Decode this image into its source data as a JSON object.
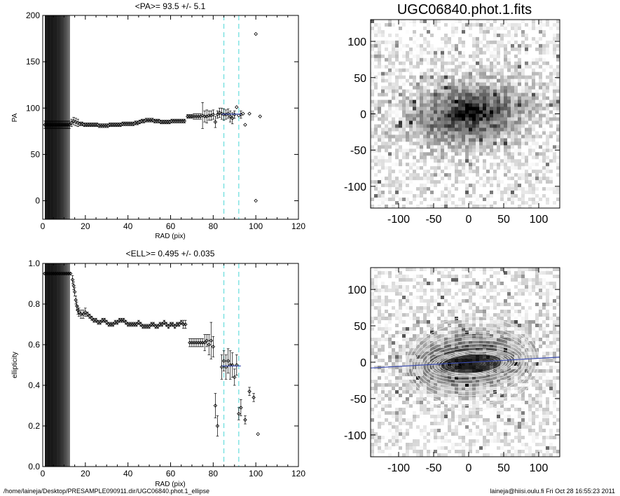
{
  "chart_data": [
    {
      "type": "scatter",
      "title": "<PA>=  93.5 +/-   5.1",
      "xlabel": "RAD (pix)",
      "ylabel": "PA",
      "xlim": [
        0,
        120
      ],
      "ylim": [
        -20,
        200
      ],
      "xticks": [
        "0",
        "20",
        "40",
        "60",
        "80",
        "100",
        "120"
      ],
      "yticks": [
        "0",
        "50",
        "100",
        "150",
        "200"
      ],
      "vlines": [
        85,
        92
      ],
      "series": [
        {
          "points": [
            [
              1,
              82
            ],
            [
              1.6,
              82
            ],
            [
              2.2,
              82
            ],
            [
              2.8,
              82
            ],
            [
              3.4,
              82
            ],
            [
              4,
              82
            ],
            [
              4.6,
              82
            ],
            [
              5.2,
              82
            ],
            [
              5.8,
              82
            ],
            [
              6.4,
              82
            ],
            [
              7,
              82
            ],
            [
              7.6,
              82
            ],
            [
              8.2,
              82
            ],
            [
              8.8,
              82
            ],
            [
              9.4,
              82
            ],
            [
              10,
              82
            ],
            [
              10.6,
              82
            ],
            [
              11.2,
              82
            ],
            [
              11.8,
              82
            ],
            [
              12.5,
              82
            ],
            [
              13.5,
              84
            ],
            [
              14.5,
              86
            ],
            [
              15.5,
              85
            ],
            [
              16.5,
              84
            ],
            [
              17.5,
              83
            ],
            [
              18.5,
              83
            ],
            [
              19.5,
              82
            ],
            [
              20.5,
              82
            ],
            [
              21.5,
              82
            ],
            [
              22.5,
              82
            ],
            [
              23.5,
              82
            ],
            [
              24.5,
              82
            ],
            [
              25.5,
              82
            ],
            [
              26.5,
              81
            ],
            [
              27.5,
              81
            ],
            [
              28.5,
              81
            ],
            [
              29.5,
              81
            ],
            [
              30.5,
              81
            ],
            [
              31.5,
              82
            ],
            [
              32.5,
              82
            ],
            [
              33.5,
              82
            ],
            [
              34.5,
              82
            ],
            [
              35.5,
              82
            ],
            [
              36.5,
              82
            ],
            [
              37.5,
              83
            ],
            [
              38.5,
              83
            ],
            [
              39.5,
              83
            ],
            [
              40.5,
              83
            ],
            [
              41.5,
              83
            ],
            [
              42.5,
              83
            ],
            [
              43.5,
              84
            ],
            [
              44.5,
              84
            ],
            [
              45.5,
              85
            ],
            [
              46.5,
              86
            ],
            [
              47.5,
              86
            ],
            [
              48.5,
              87
            ],
            [
              49.5,
              87
            ],
            [
              50.5,
              87
            ],
            [
              51.5,
              87
            ],
            [
              52.5,
              86
            ],
            [
              53.5,
              86
            ],
            [
              54.5,
              86
            ],
            [
              55.5,
              85
            ],
            [
              56.5,
              85
            ],
            [
              57.5,
              85
            ],
            [
              58.5,
              85
            ],
            [
              59.5,
              85
            ],
            [
              60.5,
              86
            ],
            [
              61.5,
              86
            ],
            [
              62.5,
              86
            ],
            [
              63.5,
              86
            ],
            [
              64.5,
              86
            ],
            [
              65.5,
              86
            ],
            [
              66.5,
              86
            ],
            [
              68,
              91
            ],
            [
              69,
              91
            ],
            [
              70,
              91
            ],
            [
              71,
              91
            ],
            [
              72,
              91
            ],
            [
              73,
              91
            ],
            [
              74,
              91
            ],
            [
              75,
              92
            ],
            [
              76,
              91
            ],
            [
              77,
              91
            ],
            [
              78,
              92
            ],
            [
              79,
              92
            ],
            [
              80,
              93
            ],
            [
              81,
              85
            ],
            [
              82,
              93
            ],
            [
              83,
              95
            ],
            [
              84,
              94
            ],
            [
              85,
              93
            ],
            [
              86,
              93
            ],
            [
              87,
              94
            ],
            [
              88,
              91
            ],
            [
              89,
              89
            ],
            [
              90,
              93
            ],
            [
              91,
              101
            ],
            [
              92,
              92
            ],
            [
              93,
              93
            ],
            [
              94,
              94
            ],
            [
              95,
              82
            ],
            [
              97,
              94
            ],
            [
              100,
              180
            ],
            [
              100,
              0
            ],
            [
              102,
              91
            ]
          ],
          "errors": [
            4,
            4,
            4,
            4,
            4,
            4,
            4,
            4,
            4,
            4,
            4,
            4,
            4,
            4,
            4,
            4,
            4,
            4,
            4,
            4,
            4,
            4,
            4,
            4,
            2,
            2,
            2,
            2,
            2,
            2,
            2,
            2,
            2,
            2,
            2,
            2,
            2,
            2,
            2,
            2,
            2,
            2,
            2,
            2,
            2,
            2,
            2,
            2,
            2,
            2,
            2,
            2,
            2,
            2,
            2,
            2,
            2,
            2,
            2,
            2,
            2,
            2,
            2,
            2,
            2,
            2,
            2,
            2,
            2,
            2,
            2,
            2,
            2,
            2,
            2,
            2,
            2,
            3,
            3,
            3,
            3,
            14,
            6,
            7,
            5,
            5,
            5,
            6,
            4,
            5,
            6,
            6,
            5,
            5,
            6,
            6,
            4,
            0,
            0,
            4
          ]
        }
      ],
      "mean_marker": {
        "x": [
          84,
          93
        ],
        "y": 93.5
      }
    },
    {
      "type": "scatter",
      "title": "<ELL>= 0.495 +/-  0.035",
      "xlabel": "RAD (pix)",
      "ylabel": "ellipticity",
      "xlim": [
        0,
        120
      ],
      "ylim": [
        0.0,
        1.0
      ],
      "xticks": [
        "0",
        "20",
        "40",
        "60",
        "80",
        "100",
        "120"
      ],
      "yticks": [
        "0.0",
        "0.2",
        "0.4",
        "0.6",
        "0.8",
        "1.0"
      ],
      "vlines": [
        85,
        92
      ],
      "series": [
        {
          "points": [
            [
              1,
              0.95
            ],
            [
              2,
              0.95
            ],
            [
              3,
              0.95
            ],
            [
              4,
              0.95
            ],
            [
              5,
              0.95
            ],
            [
              6,
              0.95
            ],
            [
              7,
              0.95
            ],
            [
              8,
              0.95
            ],
            [
              9,
              0.95
            ],
            [
              10,
              0.95
            ],
            [
              11,
              0.95
            ],
            [
              12,
              0.95
            ],
            [
              13,
              0.95
            ],
            [
              14,
              0.92
            ],
            [
              14.5,
              0.89
            ],
            [
              15,
              0.86
            ],
            [
              15.5,
              0.82
            ],
            [
              16,
              0.79
            ],
            [
              16.5,
              0.77
            ],
            [
              17,
              0.76
            ],
            [
              18,
              0.75
            ],
            [
              19,
              0.75
            ],
            [
              20,
              0.76
            ],
            [
              21,
              0.75
            ],
            [
              22,
              0.74
            ],
            [
              23,
              0.73
            ],
            [
              24,
              0.72
            ],
            [
              25,
              0.72
            ],
            [
              26,
              0.71
            ],
            [
              27,
              0.71
            ],
            [
              28,
              0.72
            ],
            [
              29,
              0.72
            ],
            [
              30,
              0.71
            ],
            [
              31,
              0.7
            ],
            [
              32,
              0.7
            ],
            [
              33,
              0.7
            ],
            [
              34,
              0.71
            ],
            [
              35,
              0.71
            ],
            [
              36,
              0.72
            ],
            [
              37,
              0.72
            ],
            [
              38,
              0.72
            ],
            [
              39,
              0.71
            ],
            [
              40,
              0.7
            ],
            [
              41,
              0.7
            ],
            [
              42,
              0.7
            ],
            [
              43,
              0.7
            ],
            [
              44,
              0.7
            ],
            [
              45,
              0.71
            ],
            [
              46,
              0.7
            ],
            [
              47,
              0.69
            ],
            [
              48,
              0.69
            ],
            [
              49,
              0.69
            ],
            [
              50,
              0.69
            ],
            [
              51,
              0.7
            ],
            [
              52,
              0.7
            ],
            [
              53,
              0.69
            ],
            [
              54,
              0.69
            ],
            [
              55,
              0.7
            ],
            [
              56,
              0.7
            ],
            [
              57,
              0.71
            ],
            [
              58,
              0.7
            ],
            [
              59,
              0.69
            ],
            [
              60,
              0.7
            ],
            [
              61,
              0.7
            ],
            [
              62,
              0.69
            ],
            [
              63,
              0.7
            ],
            [
              64,
              0.7
            ],
            [
              65,
              0.71
            ],
            [
              66,
              0.7
            ],
            [
              67,
              0.7
            ],
            [
              69,
              0.61
            ],
            [
              70,
              0.61
            ],
            [
              71,
              0.61
            ],
            [
              72,
              0.61
            ],
            [
              73,
              0.61
            ],
            [
              74,
              0.61
            ],
            [
              75,
              0.61
            ],
            [
              76,
              0.61
            ],
            [
              77,
              0.62
            ],
            [
              78,
              0.6
            ],
            [
              79,
              0.62
            ],
            [
              80,
              0.59
            ],
            [
              81,
              0.3
            ],
            [
              82,
              0.2
            ],
            [
              84,
              0.49
            ],
            [
              85,
              0.52
            ],
            [
              86,
              0.49
            ],
            [
              87,
              0.52
            ],
            [
              88,
              0.5
            ],
            [
              89,
              0.5
            ],
            [
              90,
              0.44
            ],
            [
              91,
              0.5
            ],
            [
              92,
              0.26
            ],
            [
              93,
              0.29
            ],
            [
              95,
              0.23
            ],
            [
              97,
              0.37
            ],
            [
              99,
              0.34
            ],
            [
              101,
              0.16
            ]
          ],
          "errors": [
            0.005,
            0.005,
            0.005,
            0.005,
            0.005,
            0.005,
            0.005,
            0.005,
            0.005,
            0.005,
            0.005,
            0.005,
            0.005,
            0.02,
            0.02,
            0.02,
            0.02,
            0.02,
            0.02,
            0.02,
            0.02,
            0.02,
            0.02,
            0.01,
            0.01,
            0.01,
            0.01,
            0.01,
            0.01,
            0.01,
            0.01,
            0.01,
            0.01,
            0.01,
            0.01,
            0.01,
            0.01,
            0.01,
            0.01,
            0.01,
            0.01,
            0.01,
            0.01,
            0.01,
            0.01,
            0.01,
            0.01,
            0.01,
            0.01,
            0.01,
            0.01,
            0.01,
            0.01,
            0.01,
            0.01,
            0.01,
            0.01,
            0.01,
            0.01,
            0.01,
            0.01,
            0.01,
            0.01,
            0.01,
            0.01,
            0.01,
            0.01,
            0.01,
            0.02,
            0.02,
            0.02,
            0.02,
            0.02,
            0.02,
            0.02,
            0.02,
            0.02,
            0.04,
            0.03,
            0.05,
            0.09,
            0.05,
            0.06,
            0.05,
            0.06,
            0.05,
            0.06,
            0.06,
            0.07,
            0.06,
            0.04,
            0.05,
            0.03,
            0.04,
            0.02,
            0.02,
            0.02
          ]
        }
      ],
      "mean_marker": {
        "x": [
          84,
          93
        ],
        "y": 0.495
      }
    },
    {
      "type": "heatmap",
      "title": "UGC06840.phot.1.fits",
      "xlim": [
        -140,
        130
      ],
      "ylim": [
        -130,
        130
      ],
      "xticks": [
        "-100",
        "-50",
        "0",
        "50",
        "100"
      ],
      "yticks": [
        "100",
        "50",
        "0",
        "-50",
        "-100"
      ],
      "colormap": "grayscale"
    },
    {
      "type": "heatmap",
      "title": "",
      "xlim": [
        -140,
        130
      ],
      "ylim": [
        -130,
        130
      ],
      "xticks": [
        "-100",
        "-50",
        "0",
        "50",
        "100"
      ],
      "yticks": [
        "100",
        "50",
        "0",
        "-50",
        "-100"
      ],
      "colormap": "grayscale",
      "overlay": "ellipse-contours",
      "major_axis_line_color": "#3a4bb0"
    }
  ],
  "footer": {
    "left": "/home/laineja/Desktop/PRESAMPLE090911.dir/UGC06840.phot.1_ellipse",
    "right": "laineja@hiisi.oulu.fi  Fri Oct 28 16:55:23 2011"
  },
  "colors": {
    "guide_lines": "#66dddd",
    "mean_marker": "#3a4bb0",
    "data_points": "#000000"
  }
}
